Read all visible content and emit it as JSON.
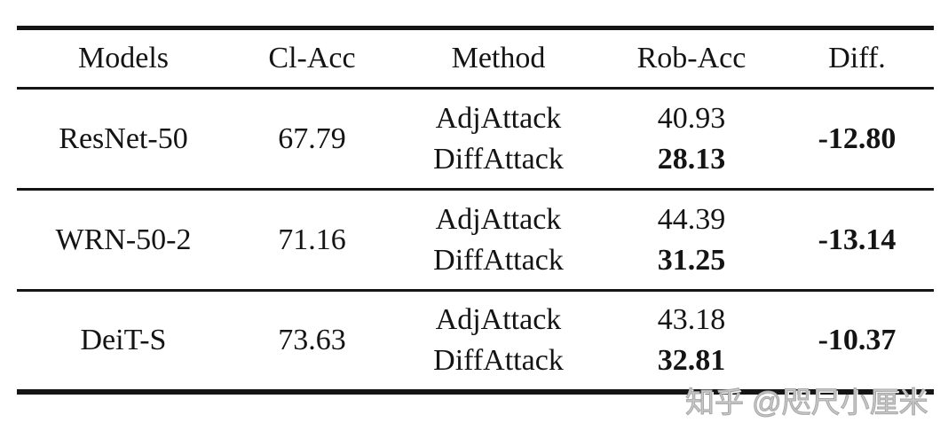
{
  "table": {
    "headers": {
      "models": "Models",
      "cl_acc": "Cl-Acc",
      "method": "Method",
      "rob_acc": "Rob-Acc",
      "diff": "Diff."
    },
    "rows": [
      {
        "model": "ResNet-50",
        "cl_acc": "67.79",
        "methods": [
          "AdjAttack",
          "DiffAttack"
        ],
        "rob_accs": [
          "40.93",
          "28.13"
        ],
        "diff": "-12.80"
      },
      {
        "model": "WRN-50-2",
        "cl_acc": "71.16",
        "methods": [
          "AdjAttack",
          "DiffAttack"
        ],
        "rob_accs": [
          "44.39",
          "31.25"
        ],
        "diff": "-13.14"
      },
      {
        "model": "DeiT-S",
        "cl_acc": "73.63",
        "methods": [
          "AdjAttack",
          "DiffAttack"
        ],
        "rob_accs": [
          "43.18",
          "32.81"
        ],
        "diff": "-10.37"
      }
    ]
  },
  "watermark": {
    "text": "知乎 @咫尺小厘米"
  },
  "colors": {
    "background": "#ffffff",
    "text": "#141414",
    "rule": "#151515",
    "watermark_gray": "#a6a6a6"
  }
}
